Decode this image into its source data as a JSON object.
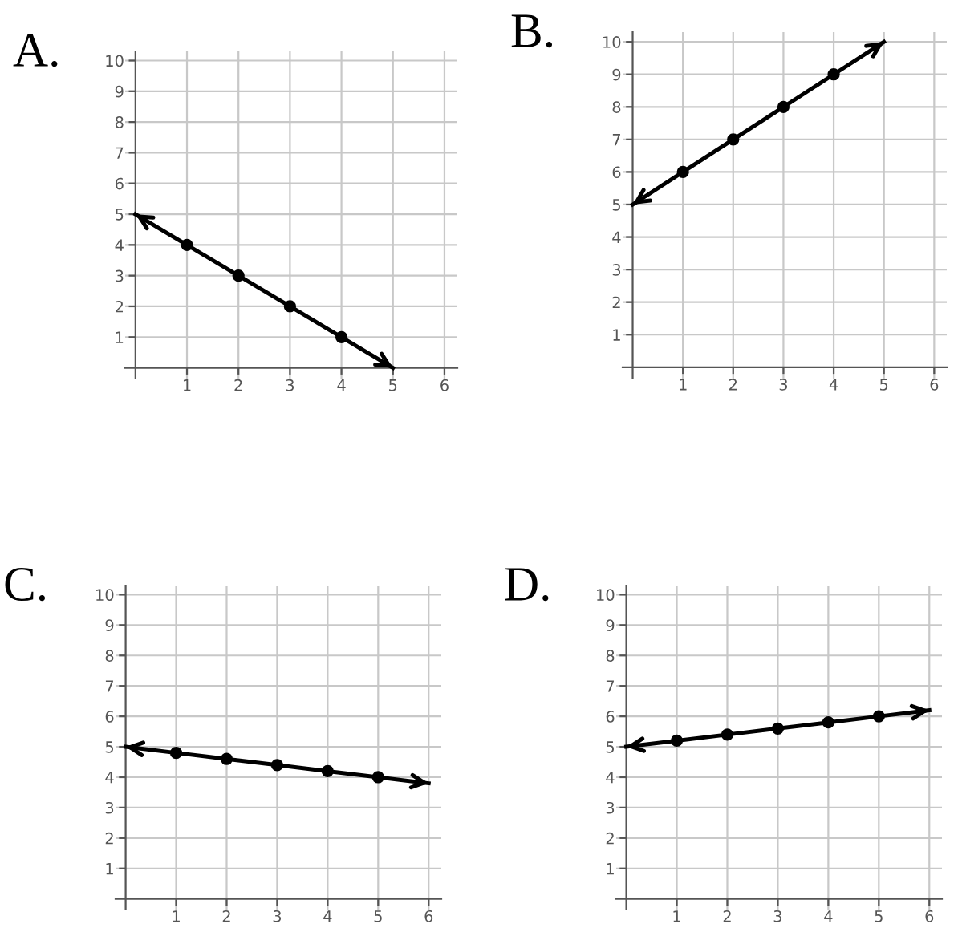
{
  "chart_data": [
    {
      "type": "line",
      "title": "A.",
      "x": [
        0,
        1,
        2,
        3,
        4,
        5
      ],
      "values": [
        5,
        4,
        3,
        2,
        1,
        0
      ],
      "color": "#000000",
      "marker": "circle",
      "xlim": [
        -0.2,
        6.25
      ],
      "ylim": [
        -0.35,
        10.3
      ],
      "xticks": [
        1,
        2,
        3,
        4,
        5,
        6
      ],
      "yticks": [
        1,
        2,
        3,
        4,
        5,
        6,
        7,
        8,
        9,
        10
      ],
      "grid": true
    },
    {
      "type": "line",
      "title": "B.",
      "x": [
        0,
        1,
        2,
        3,
        4,
        5
      ],
      "values": [
        5,
        6,
        7,
        8,
        9,
        10
      ],
      "color": "#000000",
      "marker": "circle",
      "xlim": [
        -0.2,
        6.25
      ],
      "ylim": [
        -0.35,
        10.3
      ],
      "xticks": [
        1,
        2,
        3,
        4,
        5,
        6
      ],
      "yticks": [
        1,
        2,
        3,
        4,
        5,
        6,
        7,
        8,
        9,
        10
      ],
      "grid": true
    },
    {
      "type": "line",
      "title": "C.",
      "x": [
        0,
        1,
        2,
        3,
        4,
        5,
        6
      ],
      "values": [
        5,
        4.8,
        4.6,
        4.4,
        4.2,
        4.0,
        3.8
      ],
      "color": "#000000",
      "marker": "circle",
      "xlim": [
        -0.2,
        6.25
      ],
      "ylim": [
        -0.35,
        10.3
      ],
      "xticks": [
        1,
        2,
        3,
        4,
        5,
        6
      ],
      "yticks": [
        1,
        2,
        3,
        4,
        5,
        6,
        7,
        8,
        9,
        10
      ],
      "grid": true
    },
    {
      "type": "line",
      "title": "D.",
      "x": [
        0,
        1,
        2,
        3,
        4,
        5,
        6
      ],
      "values": [
        5,
        5.2,
        5.4,
        5.6,
        5.8,
        6.0,
        6.2
      ],
      "color": "#000000",
      "marker": "circle",
      "xlim": [
        -0.2,
        6.25
      ],
      "ylim": [
        -0.35,
        10.3
      ],
      "xticks": [
        1,
        2,
        3,
        4,
        5,
        6
      ],
      "yticks": [
        1,
        2,
        3,
        4,
        5,
        6,
        7,
        8,
        9,
        10
      ],
      "grid": true
    }
  ]
}
